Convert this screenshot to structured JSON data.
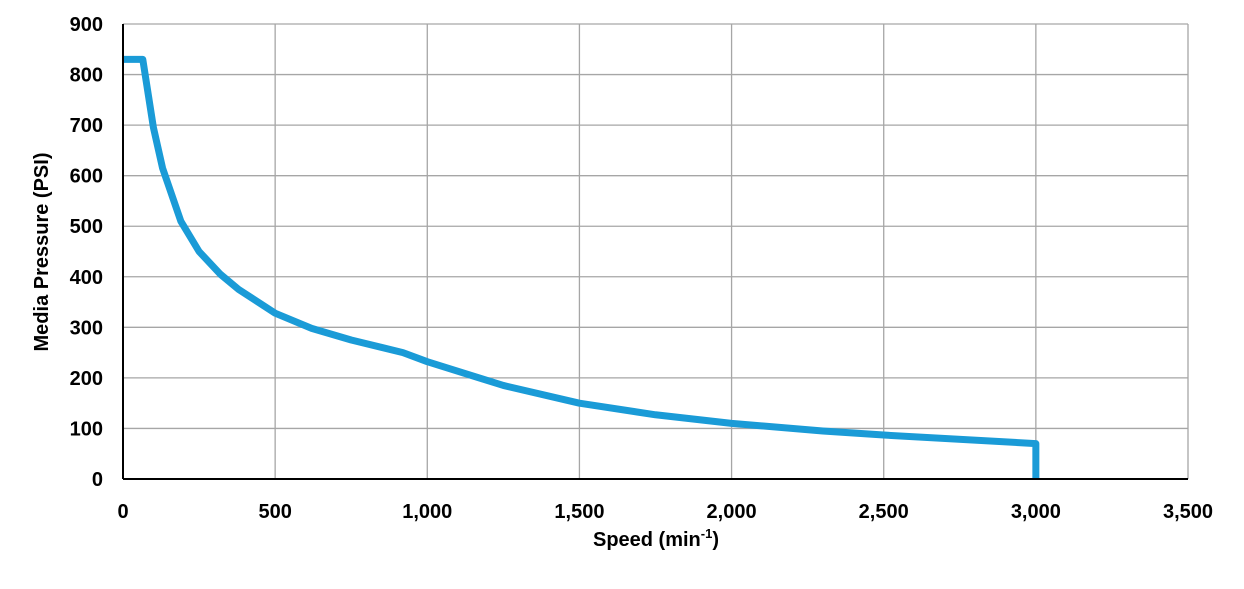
{
  "chart_data": {
    "type": "line",
    "xlabel": "Speed (min",
    "xlabel_superscript": "-1",
    "xlabel_suffix": ")",
    "ylabel": "Media Pressure (PSI)",
    "x": [
      0,
      65,
      100,
      130,
      190,
      250,
      320,
      380,
      500,
      620,
      750,
      920,
      1000,
      1250,
      1500,
      1750,
      2000,
      2300,
      2500,
      3000,
      3000
    ],
    "values": [
      830,
      830,
      695,
      615,
      510,
      450,
      405,
      375,
      328,
      298,
      275,
      250,
      232,
      185,
      150,
      127,
      110,
      95,
      87,
      70,
      0
    ],
    "color": "#1a9bd7",
    "xlim": [
      0,
      3500
    ],
    "xticks": [
      0,
      500,
      {
        "value": 1000,
        "label": "1,000"
      },
      {
        "value": 1500,
        "label": "1,500"
      },
      {
        "value": 2000,
        "label": "2,000"
      },
      {
        "value": 2500,
        "label": "2,500"
      },
      {
        "value": 3000,
        "label": "3,000"
      },
      {
        "value": 3500,
        "label": "3,500"
      }
    ],
    "ylim": [
      0,
      900
    ],
    "yticks": [
      0,
      100,
      200,
      300,
      400,
      500,
      600,
      700,
      800,
      900
    ],
    "grid": true
  }
}
